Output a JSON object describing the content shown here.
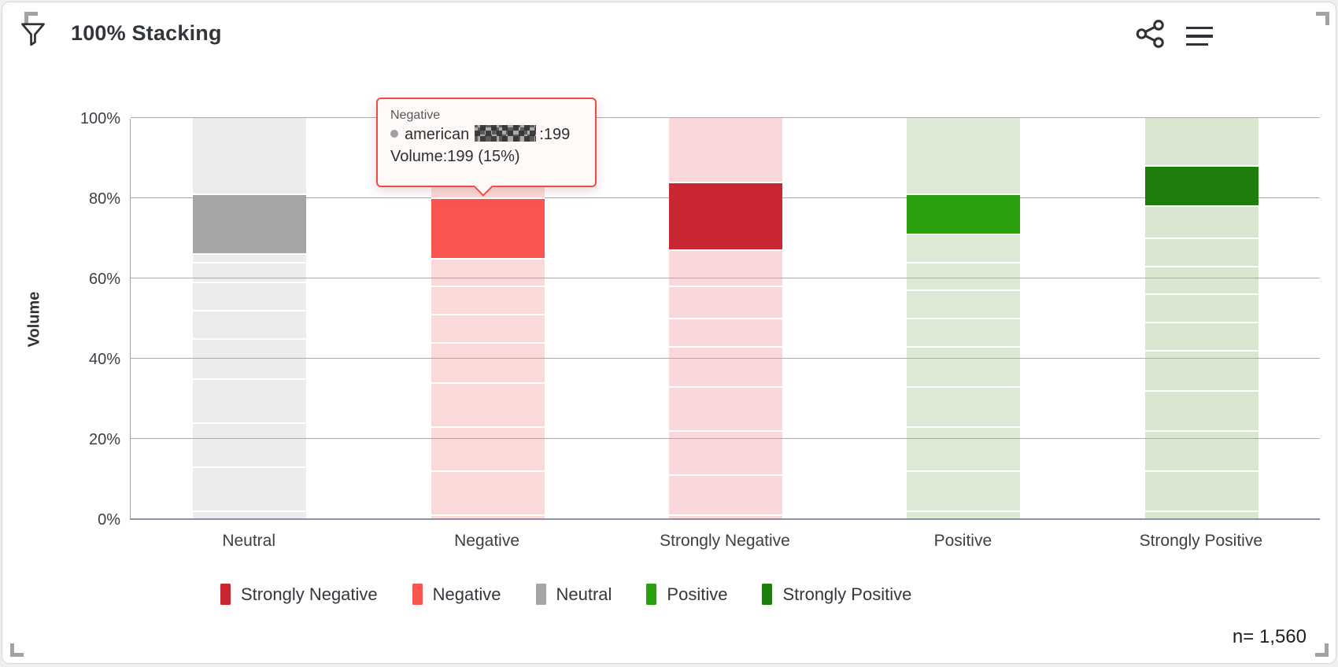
{
  "widget": {
    "title": "100% Stacking",
    "n_label": "n= 1,560"
  },
  "header": {
    "icons": [
      "filter-icon",
      "share-icon",
      "menu-icon"
    ]
  },
  "tooltip": {
    "category": "Negative",
    "series_prefix": "american",
    "series_suffix": ":199",
    "volume_line": "Volume:199 (15%)"
  },
  "colors": {
    "strongly_negative": "#ca2632",
    "negative": "#f9544f",
    "neutral": "#a5a5a5",
    "positive": "#2aa00f",
    "strongly_positive": "#1e7d0c",
    "dim_negative": "#fbdbd9",
    "dim_neutral": "#ececec",
    "dim_positive": "#dcead5",
    "dim_strongly_positive": "#d9e7d1",
    "tooltip_border": "#ee4c49",
    "gridline": "#a6aabf"
  },
  "chart_data": {
    "type": "bar",
    "stacking": "percent",
    "title": "100% Stacking",
    "xlabel": "",
    "ylabel": "Volume",
    "ylim": [
      0,
      100
    ],
    "yticks": [
      "0%",
      "20%",
      "40%",
      "60%",
      "80%",
      "100%"
    ],
    "ytick_values": [
      0,
      20,
      40,
      60,
      80,
      100
    ],
    "grid": "horizontal",
    "legend_position": "bottom",
    "legend": [
      "Strongly Negative",
      "Negative",
      "Neutral",
      "Positive",
      "Strongly Positive"
    ],
    "categories": [
      "Neutral",
      "Negative",
      "Strongly Negative",
      "Positive",
      "Strongly Positive"
    ],
    "highlighted_series": "american (censored)",
    "highlighted_segments": [
      {
        "category": "Neutral",
        "from_pct": 66,
        "to_pct": 81,
        "size_pct": 15
      },
      {
        "category": "Negative",
        "from_pct": 65,
        "to_pct": 80,
        "size_pct": 15,
        "volume": 199
      },
      {
        "category": "Strongly Negative",
        "from_pct": 67,
        "to_pct": 84,
        "size_pct": 17
      },
      {
        "category": "Positive",
        "from_pct": 71,
        "to_pct": 81,
        "size_pct": 10
      },
      {
        "category": "Strongly Positive",
        "from_pct": 78,
        "to_pct": 88,
        "size_pct": 10
      }
    ],
    "sample_size": "n= 1,560",
    "bars": [
      {
        "label": "Neutral",
        "hl_color": "#a5a5a5",
        "dim_color": "#ececec",
        "segments": [
          {
            "h": 2
          },
          {
            "h": 11
          },
          {
            "h": 11
          },
          {
            "h": 11
          },
          {
            "h": 10
          },
          {
            "h": 7
          },
          {
            "h": 7
          },
          {
            "h": 5
          },
          {
            "h": 2
          },
          {
            "h": 15,
            "hl": true
          },
          {
            "h": 19
          }
        ]
      },
      {
        "label": "Negative",
        "hl_color": "#f9544f",
        "dim_color": "#fbdbd9",
        "segments": [
          {
            "h": 1
          },
          {
            "h": 11
          },
          {
            "h": 11
          },
          {
            "h": 11
          },
          {
            "h": 10
          },
          {
            "h": 7
          },
          {
            "h": 7
          },
          {
            "h": 7
          },
          {
            "h": 15,
            "hl": true
          },
          {
            "h": 20
          }
        ]
      },
      {
        "label": "Strongly Negative",
        "hl_color": "#ca2632",
        "dim_color": "#f8d8da",
        "segments": [
          {
            "h": 1
          },
          {
            "h": 10
          },
          {
            "h": 11
          },
          {
            "h": 11
          },
          {
            "h": 10
          },
          {
            "h": 7
          },
          {
            "h": 8
          },
          {
            "h": 9
          },
          {
            "h": 17,
            "hl": true
          },
          {
            "h": 16
          }
        ]
      },
      {
        "label": "Positive",
        "hl_color": "#2aa00f",
        "dim_color": "#dcead5",
        "segments": [
          {
            "h": 2
          },
          {
            "h": 10
          },
          {
            "h": 11
          },
          {
            "h": 10
          },
          {
            "h": 10
          },
          {
            "h": 7
          },
          {
            "h": 7
          },
          {
            "h": 7
          },
          {
            "h": 7
          },
          {
            "h": 10,
            "hl": true
          },
          {
            "h": 19
          }
        ]
      },
      {
        "label": "Strongly Positive",
        "hl_color": "#1e7d0c",
        "dim_color": "#d9e7d1",
        "segments": [
          {
            "h": 2
          },
          {
            "h": 10
          },
          {
            "h": 10
          },
          {
            "h": 10
          },
          {
            "h": 10
          },
          {
            "h": 7
          },
          {
            "h": 7
          },
          {
            "h": 7
          },
          {
            "h": 7
          },
          {
            "h": 8
          },
          {
            "h": 10,
            "hl": true
          },
          {
            "h": 12
          }
        ]
      }
    ],
    "legend_items": [
      {
        "label": "Strongly Negative",
        "color": "#ca2632"
      },
      {
        "label": "Negative",
        "color": "#f9544f"
      },
      {
        "label": "Neutral",
        "color": "#a5a5a5"
      },
      {
        "label": "Positive",
        "color": "#2aa00f"
      },
      {
        "label": "Strongly Positive",
        "color": "#1e7d0c"
      }
    ]
  }
}
